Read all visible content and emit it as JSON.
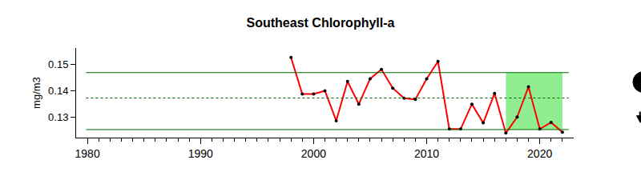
{
  "chart_data": {
    "type": "line",
    "title": "Southeast Chlorophyll-a",
    "y_label": "mg/m3",
    "x": [
      1998,
      1999,
      2000,
      2001,
      2002,
      2003,
      2004,
      2005,
      2006,
      2007,
      2008,
      2009,
      2010,
      2011,
      2012,
      2013,
      2014,
      2015,
      2016,
      2017,
      2018,
      2019,
      2020,
      2021,
      2022
    ],
    "series": [
      {
        "name": "Southeast Chlorophyll-a",
        "color": "#ff0000",
        "marker": "circle",
        "line_style": "solid",
        "values": [
          0.1525,
          0.1388,
          0.1388,
          0.14,
          0.1288,
          0.1435,
          0.135,
          0.1445,
          0.148,
          0.141,
          0.1372,
          0.1368,
          0.1445,
          0.151,
          0.1257,
          0.1257,
          0.135,
          0.128,
          0.139,
          0.1242,
          0.1302,
          0.1415,
          0.1257,
          0.1282,
          0.1245
        ]
      }
    ],
    "xlim": [
      1979,
      2023
    ],
    "xticks": [
      1980,
      1990,
      2000,
      2010,
      2020
    ],
    "x_minor_ticks": [
      1980,
      1981,
      1982,
      1983,
      1984,
      1985,
      1986,
      1987,
      1988,
      1989,
      1990,
      1991,
      1992,
      1993,
      1994,
      1995,
      1996,
      1997,
      1998,
      1999,
      2000,
      2001,
      2002,
      2003,
      2004,
      2005,
      2006,
      2007,
      2008,
      2009,
      2010,
      2011,
      2012,
      2013,
      2014,
      2015,
      2016,
      2017,
      2018,
      2019,
      2020,
      2021,
      2022
    ],
    "ylim": [
      0.1225,
      0.156
    ],
    "yticks": [
      0.13,
      0.14,
      0.15
    ],
    "grid": false,
    "reference_lines": {
      "upper": 0.1468,
      "mean": 0.1373,
      "lower": 0.1255
    },
    "shaded_region": {
      "x": [
        2017,
        2022
      ],
      "y": [
        0.1255,
        0.1468
      ],
      "color": "#90ee90"
    }
  }
}
